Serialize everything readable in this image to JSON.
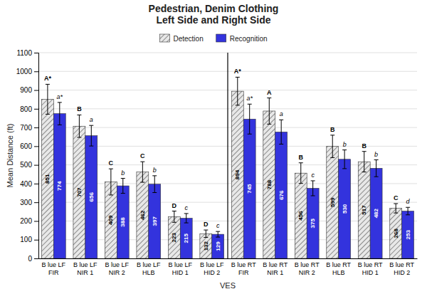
{
  "chart_data": {
    "type": "bar",
    "title": "Pedestrian, Denim Clothing\nLeft Side and Right Side",
    "xlabel": "VES",
    "ylabel": "Mean Distance (ft)",
    "categories": [
      "B lue LF\nFIR",
      "B lue LF\nNIR 1",
      "B lue LF\nNIR 2",
      "B lue LF\nHLB",
      "B lue LF\nHID 1",
      "B lue LF\nHID 2",
      "B lue RT\nFIR",
      "B lue RT\nNIR 1",
      "B lue RT\nNIR 2",
      "B lue RT\nHLB",
      "B lue RT\nHID 1",
      "B lue RT\nHID 2"
    ],
    "series": [
      {
        "name": "Detection",
        "color": "#e8e8e8",
        "values": [
          851,
          707,
          409,
          462,
          223,
          132,
          894,
          788,
          456,
          599,
          517,
          268
        ],
        "errors": [
          80,
          60,
          70,
          55,
          30,
          20,
          75,
          70,
          55,
          60,
          55,
          25
        ],
        "annotations": [
          "A*",
          "B",
          "C",
          "C",
          "D",
          "D",
          "A*",
          "A",
          "B",
          "B",
          "B",
          "C"
        ]
      },
      {
        "name": "Recognition",
        "color": "#3333dd",
        "values": [
          774,
          656,
          388,
          397,
          215,
          129,
          745,
          676,
          375,
          530,
          482,
          253
        ],
        "errors": [
          60,
          55,
          40,
          45,
          25,
          15,
          80,
          65,
          40,
          50,
          45,
          20
        ],
        "annotations": [
          "a*",
          "a",
          "b",
          "b",
          "c",
          "c",
          "a*",
          "a",
          "c",
          "b",
          "b",
          "d"
        ]
      }
    ],
    "ylim": [
      0,
      1100
    ],
    "yticks": [
      0,
      100,
      200,
      300,
      400,
      500,
      600,
      700,
      800,
      900,
      1000,
      1100
    ],
    "grid": true,
    "legend": "top",
    "data_labels": true
  }
}
